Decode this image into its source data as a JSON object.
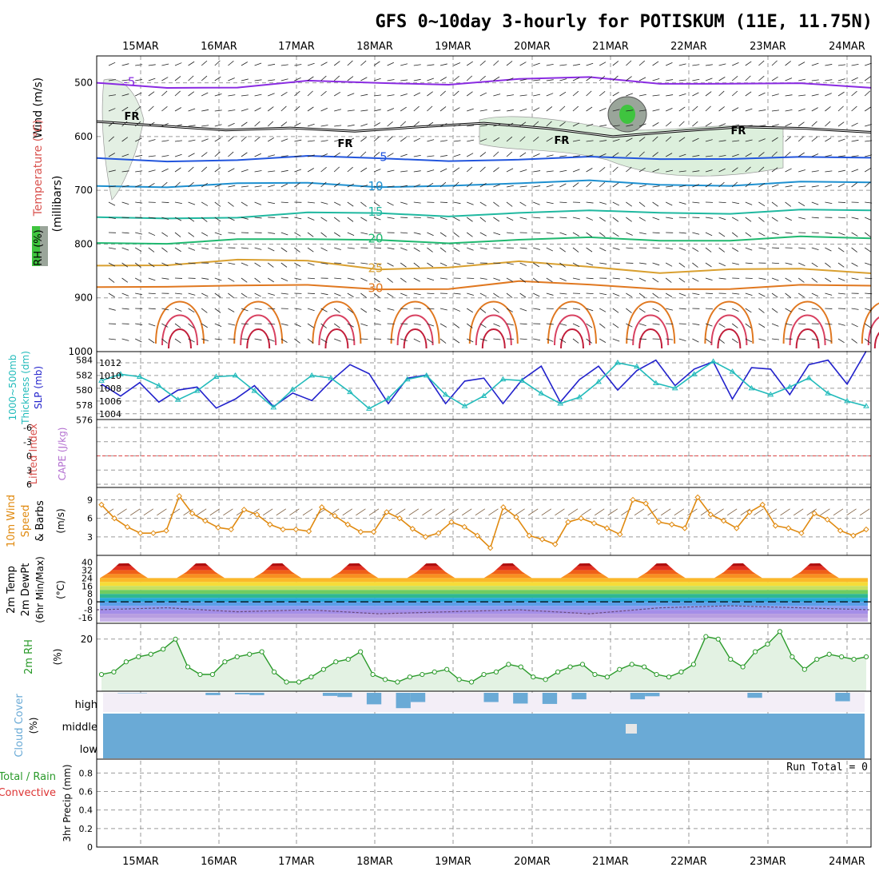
{
  "title": "GFS 0~10day 3-hourly for POTISKUM (11E, 11.75N)",
  "dates": [
    "15MAR",
    "16MAR",
    "17MAR",
    "18MAR",
    "19MAR",
    "20MAR",
    "21MAR",
    "22MAR",
    "23MAR",
    "24MAR"
  ],
  "colors": {
    "frame": "#000000",
    "grid": "#9a9a9a",
    "thickness": "#2222cc",
    "slp": "#22bbbb",
    "wind": "#e08a10",
    "rh": "#2a9a2a",
    "rh_fill": "#e3f2e3",
    "cloud": "#6aaad6",
    "cloud_bg": "#f3eef7",
    "li_zero": "#dd4444"
  },
  "panels": {
    "upper": {
      "ylabel_main": "(millibars)",
      "ylabel_wind": "Wind (m/s)",
      "ylabel_temp": "Temperature (°C)",
      "ylabel_rh": "RH (%)",
      "levels": [
        "500",
        "600",
        "700",
        "800",
        "900",
        "1000"
      ],
      "freezing_label": "FR"
    },
    "thickness": {
      "ylabel_thk": "1000~500mb",
      "ylabel_thk2": "Thickness (dm)",
      "ylabel_slp": "SLP (mb)",
      "left_ticks": [
        "584",
        "582",
        "580",
        "578",
        "576"
      ],
      "right_ticks": [
        "1012",
        "1010",
        "1008",
        "1006",
        "1004"
      ]
    },
    "cape": {
      "ylabel_li": "Lifted Index",
      "ylabel_cape": "CAPE (J/kg)",
      "ticks": [
        "-6",
        "-3",
        "0",
        "3",
        "6"
      ]
    },
    "wind10": {
      "ylabel_a": "10m Wind",
      "ylabel_b": "Speed",
      "ylabel_c": "& Barbs",
      "unit": "(m/s)",
      "ticks": [
        "9",
        "6",
        "3"
      ]
    },
    "temp2m": {
      "ylabel_a": "2m Temp",
      "ylabel_b": "2m DewPt",
      "ylabel_c": "(6hr Min/Max)",
      "unit": "(°C)",
      "ticks": [
        "40",
        "32",
        "24",
        "16",
        "8",
        "0",
        "-8",
        "-16"
      ]
    },
    "rh2m": {
      "ylabel": "2m RH",
      "unit": "(%)",
      "ticks": [
        "20"
      ]
    },
    "cloud": {
      "ylabel": "Cloud Cover",
      "unit": "(%)",
      "layers": [
        "high",
        "middle",
        "low"
      ]
    },
    "precip": {
      "ylabel_a": "Total / Rain",
      "ylabel_b": "Convective",
      "ylabel_c": "3hr Precip (mm)",
      "ticks": [
        "0.8",
        "0.6",
        "0.4",
        "0.2",
        "0"
      ],
      "run_total": "Run Total = 0"
    }
  },
  "chart_data": {
    "type": "line",
    "title": "GFS 0~10day 3-hourly for POTISKUM (11E, 11.75N)",
    "x_categories": [
      "15MAR",
      "16MAR",
      "17MAR",
      "18MAR",
      "19MAR",
      "20MAR",
      "21MAR",
      "22MAR",
      "23MAR",
      "24MAR"
    ],
    "upper_air_isotherms": [
      {
        "label": "-5",
        "pressure_mb": [
          500,
          505,
          510,
          500,
          498,
          500,
          496,
          492,
          498,
          500,
          505,
          510
        ]
      },
      {
        "label": "5",
        "pressure_mb": [
          640,
          642,
          645,
          640,
          638,
          642,
          646,
          640,
          638,
          640,
          642,
          640
        ]
      },
      {
        "label": "10",
        "pressure_mb": [
          692,
          690,
          688,
          690,
          692,
          688,
          690,
          684,
          686,
          690,
          688,
          686
        ]
      },
      {
        "label": "15",
        "pressure_mb": [
          750,
          748,
          752,
          745,
          740,
          745,
          745,
          740,
          738,
          742,
          740,
          738
        ]
      },
      {
        "label": "20",
        "pressure_mb": [
          798,
          795,
          792,
          795,
          790,
          795,
          795,
          790,
          790,
          792,
          790,
          790
        ]
      },
      {
        "label": "25",
        "pressure_mb": [
          840,
          835,
          830,
          835,
          845,
          840,
          835,
          845,
          850,
          845,
          850,
          855
        ]
      },
      {
        "label": "30",
        "pressure_mb": [
          880,
          875,
          878,
          880,
          882,
          880,
          872,
          878,
          880,
          882,
          880,
          878
        ]
      }
    ],
    "freezing_level_mb": [
      572,
      580,
      588,
      584,
      590,
      582,
      575,
      585,
      600,
      590,
      582,
      585,
      592
    ],
    "thickness_dm": [
      580.8,
      579.2,
      581.0,
      578.4,
      580.0,
      580.4,
      577.6,
      578.8,
      580.6,
      577.8,
      579.6,
      578.6,
      581.2,
      583.4,
      582.2,
      578.2,
      581.6,
      582.0,
      578.2,
      581.2,
      581.6,
      578.2,
      581.4,
      583.2,
      578.4,
      581.4,
      583.2,
      580.0,
      582.6,
      584.0,
      580.6,
      582.8,
      583.8,
      578.8,
      583.0,
      582.8,
      579.4,
      583.4,
      584.0,
      580.8,
      585.2
    ],
    "slp_mb": [
      1009.2,
      1010.2,
      1009.8,
      1008.4,
      1006.2,
      1007.6,
      1009.8,
      1010.0,
      1007.6,
      1005.0,
      1007.8,
      1010.0,
      1009.6,
      1007.4,
      1004.8,
      1006.4,
      1009.4,
      1010.0,
      1007.0,
      1005.2,
      1006.8,
      1009.4,
      1009.2,
      1007.2,
      1005.6,
      1006.6,
      1009.0,
      1012.0,
      1011.4,
      1008.8,
      1008.0,
      1010.2,
      1012.2,
      1010.6,
      1008.0,
      1007.0,
      1008.2,
      1009.6,
      1007.2,
      1006.0,
      1005.2
    ],
    "wind10m_ms": [
      8.2,
      6.0,
      4.6,
      3.6,
      3.6,
      4.0,
      9.6,
      6.8,
      5.6,
      4.5,
      4.2,
      7.4,
      6.6,
      5.0,
      4.2,
      4.2,
      3.9,
      7.8,
      6.4,
      5.0,
      3.8,
      3.8,
      7.0,
      6.0,
      4.3,
      3.0,
      3.6,
      5.4,
      4.6,
      3.2,
      1.2,
      7.8,
      6.2,
      3.2,
      2.6,
      1.8,
      5.4,
      6.0,
      5.2,
      4.4,
      3.4,
      9.0,
      8.4,
      5.4,
      5.0,
      4.4,
      9.4,
      6.6,
      5.6,
      4.4,
      7.0,
      8.2,
      4.8,
      4.4,
      3.6,
      6.8,
      5.8,
      4.0,
      3.2,
      4.2
    ],
    "temp2m_c": [
      {
        "min": 24,
        "max": 40
      }
    ],
    "dewpt2m_c": [
      -8,
      -6,
      -10,
      -8,
      -12,
      -10,
      -8,
      -12,
      -6,
      -4,
      -6,
      -8
    ],
    "rh2m_pct": [
      6,
      7,
      11,
      13,
      14,
      16,
      20,
      9,
      6,
      6,
      11,
      13,
      14,
      15,
      7,
      3,
      3,
      5,
      8,
      11,
      12,
      15,
      6,
      4,
      3,
      5,
      6,
      7,
      8,
      4,
      3,
      6,
      7,
      10,
      9,
      5,
      4,
      7,
      9,
      10,
      6,
      5,
      8,
      10,
      9,
      6,
      5,
      7,
      10,
      21,
      20,
      12,
      9,
      15,
      18,
      23,
      13,
      8,
      12,
      14,
      13,
      12,
      13
    ],
    "cloud_high_pct": [
      0,
      2,
      2,
      0,
      0,
      0,
      0,
      12,
      0,
      8,
      12,
      0,
      0,
      0,
      0,
      16,
      22,
      0,
      60,
      0,
      80,
      48,
      0,
      0,
      0,
      0,
      48,
      0,
      56,
      0,
      58,
      0,
      34,
      0,
      0,
      0,
      34,
      18,
      0,
      0,
      0,
      0,
      0,
      0,
      26,
      0,
      0,
      0,
      0,
      0,
      44,
      0
    ],
    "cloud_mid_pct": [
      100,
      100,
      100,
      100,
      100,
      100,
      100,
      100,
      90,
      100,
      100,
      100,
      100
    ],
    "cloud_low_pct": [
      100
    ],
    "precip_3hr_mm": [
      0,
      0,
      0,
      0,
      0,
      0,
      0,
      0,
      0,
      0
    ],
    "precip_run_total_mm": 0
  }
}
